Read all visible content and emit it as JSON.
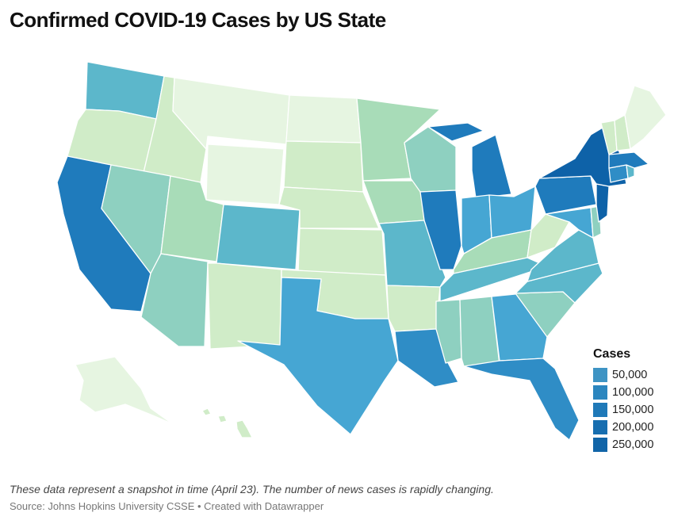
{
  "title": "Confirmed COVID-19 Cases by US State",
  "note": "These data represent a snapshot in time (April 23). The number of news cases is rapidly changing.",
  "source": "Source: Johns Hopkins University CSSE • Created with Datawrapper",
  "legend": {
    "title": "Cases",
    "items": [
      {
        "label": "50,000",
        "color": "#3e94c4"
      },
      {
        "label": "100,000",
        "color": "#2b86bf"
      },
      {
        "label": "150,000",
        "color": "#1f79b8"
      },
      {
        "label": "200,000",
        "color": "#176eb0"
      },
      {
        "label": "250,000",
        "color": "#1165a8"
      }
    ]
  },
  "palette": {
    "c0": "#e6f5e1",
    "c1": "#d0ecc8",
    "c2": "#a8dcb8",
    "c3": "#8ed0c0",
    "c4": "#5cb7cb",
    "c5": "#46a6d3",
    "c6": "#2f8dc6",
    "c7": "#1f7bbc",
    "c8": "#0e62a8"
  },
  "states": [
    {
      "name": "WA",
      "shade": "c4"
    },
    {
      "name": "OR",
      "shade": "c1"
    },
    {
      "name": "CA",
      "shade": "c7"
    },
    {
      "name": "ID",
      "shade": "c1"
    },
    {
      "name": "NV",
      "shade": "c3"
    },
    {
      "name": "AZ",
      "shade": "c3"
    },
    {
      "name": "MT",
      "shade": "c0"
    },
    {
      "name": "WY",
      "shade": "c0"
    },
    {
      "name": "UT",
      "shade": "c2"
    },
    {
      "name": "CO",
      "shade": "c4"
    },
    {
      "name": "NM",
      "shade": "c1"
    },
    {
      "name": "ND",
      "shade": "c0"
    },
    {
      "name": "SD",
      "shade": "c1"
    },
    {
      "name": "NE",
      "shade": "c1"
    },
    {
      "name": "KS",
      "shade": "c1"
    },
    {
      "name": "OK",
      "shade": "c1"
    },
    {
      "name": "TX",
      "shade": "c5"
    },
    {
      "name": "MN",
      "shade": "c2"
    },
    {
      "name": "IA",
      "shade": "c2"
    },
    {
      "name": "MO",
      "shade": "c4"
    },
    {
      "name": "AR",
      "shade": "c1"
    },
    {
      "name": "LA",
      "shade": "c6"
    },
    {
      "name": "WI",
      "shade": "c3"
    },
    {
      "name": "IL",
      "shade": "c7"
    },
    {
      "name": "MI",
      "shade": "c7"
    },
    {
      "name": "IN",
      "shade": "c5"
    },
    {
      "name": "OH",
      "shade": "c5"
    },
    {
      "name": "KY",
      "shade": "c2"
    },
    {
      "name": "TN",
      "shade": "c4"
    },
    {
      "name": "MS",
      "shade": "c3"
    },
    {
      "name": "AL",
      "shade": "c3"
    },
    {
      "name": "GA",
      "shade": "c5"
    },
    {
      "name": "FL",
      "shade": "c6"
    },
    {
      "name": "SC",
      "shade": "c3"
    },
    {
      "name": "NC",
      "shade": "c4"
    },
    {
      "name": "VA",
      "shade": "c4"
    },
    {
      "name": "WV",
      "shade": "c1"
    },
    {
      "name": "MD",
      "shade": "c5"
    },
    {
      "name": "DE",
      "shade": "c3"
    },
    {
      "name": "PA",
      "shade": "c7"
    },
    {
      "name": "NJ",
      "shade": "c8"
    },
    {
      "name": "NY",
      "shade": "c8"
    },
    {
      "name": "CT",
      "shade": "c6"
    },
    {
      "name": "RI",
      "shade": "c4"
    },
    {
      "name": "MA",
      "shade": "c7"
    },
    {
      "name": "VT",
      "shade": "c1"
    },
    {
      "name": "NH",
      "shade": "c1"
    },
    {
      "name": "ME",
      "shade": "c0"
    },
    {
      "name": "AK",
      "shade": "c0"
    },
    {
      "name": "HI",
      "shade": "c1"
    }
  ]
}
